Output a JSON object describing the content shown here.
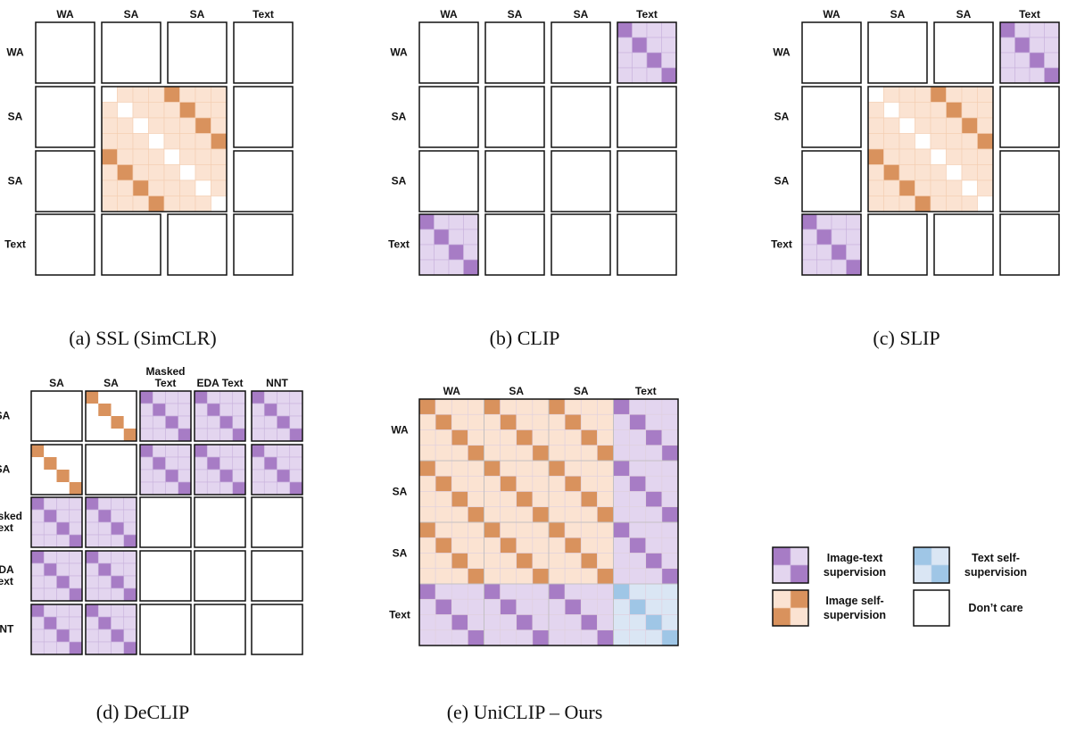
{
  "panels": [
    {
      "columns": [
        "WA",
        "SA",
        "SA",
        "Text"
      ],
      "rows": [
        "WA",
        "SA",
        "SA",
        "Text"
      ],
      "caption": "(a) SSL (SimCLR)"
    },
    {
      "columns": [
        "WA",
        "SA",
        "SA",
        "Text"
      ],
      "rows": [
        "WA",
        "SA",
        "SA",
        "Text"
      ],
      "caption": "(b) CLIP"
    },
    {
      "columns": [
        "WA",
        "SA",
        "SA",
        "Text"
      ],
      "rows": [
        "WA",
        "SA",
        "SA",
        "Text"
      ],
      "caption": "(c) SLIP"
    },
    {
      "columns": [
        "SA",
        "SA",
        "Masked Text",
        "EDA Text",
        "NNT"
      ],
      "rows": [
        "SA",
        "SA",
        "Masked Text",
        "EDA Text",
        "NNT"
      ],
      "caption": "(d) DeCLIP"
    },
    {
      "columns": [
        "WA",
        "SA",
        "SA",
        "Text"
      ],
      "rows": [
        "WA",
        "SA",
        "SA",
        "Text"
      ],
      "caption": "(e) UniCLIP – Ours"
    }
  ],
  "legend": [
    {
      "label": "Image-text supervision"
    },
    {
      "label": "Image self-supervision"
    },
    {
      "label": "Text self-supervision"
    },
    {
      "label": "Don’t care"
    }
  ]
}
